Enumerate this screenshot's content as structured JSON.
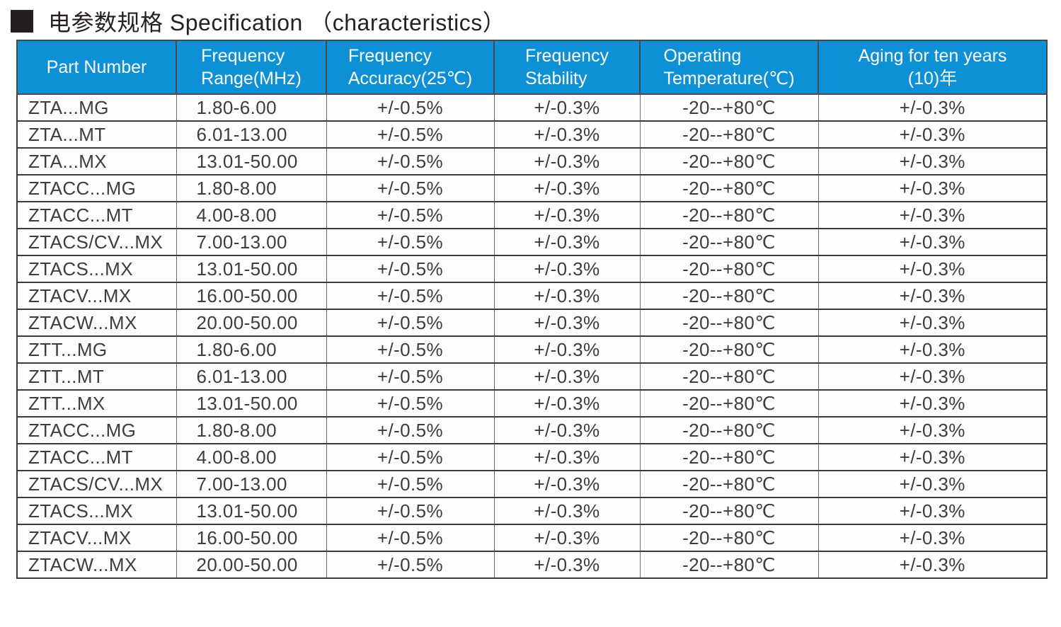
{
  "page": {
    "title": {
      "bullet_icon": "black-square",
      "text": "电参数规格 Specification （characteristics）"
    }
  },
  "colors": {
    "header_bg": "#0e90d6",
    "header_text": "#ffffff",
    "body_text": "#3d3d3d",
    "grid_line_dark": "#3a3a3a",
    "grid_line_light": "#6f6f6f",
    "title_text": "#272221"
  },
  "table": {
    "columns": [
      {
        "id": "part-number",
        "line1": "Part Number",
        "line2": ""
      },
      {
        "id": "frequency-range",
        "line1": "Frequency",
        "line2": "Range(MHz)"
      },
      {
        "id": "frequency-accuracy",
        "line1": "Frequency",
        "line2": "Accuracy(25℃)"
      },
      {
        "id": "frequency-stability",
        "line1": "Frequency",
        "line2": "Stability"
      },
      {
        "id": "operating-temperature",
        "line1": "Operating",
        "line2": "Temperature(℃)"
      },
      {
        "id": "aging-ten-years",
        "line1": "Aging for ten years",
        "line2": "(10)年"
      }
    ],
    "rows": [
      [
        "ZTA...MG",
        "1.80-6.00",
        "+/-0.5%",
        "+/-0.3%",
        "-20--+80℃",
        "+/-0.3%"
      ],
      [
        "ZTA...MT",
        "6.01-13.00",
        "+/-0.5%",
        "+/-0.3%",
        "-20--+80℃",
        "+/-0.3%"
      ],
      [
        "ZTA...MX",
        "13.01-50.00",
        "+/-0.5%",
        "+/-0.3%",
        "-20--+80℃",
        "+/-0.3%"
      ],
      [
        "ZTACC...MG",
        "1.80-8.00",
        "+/-0.5%",
        "+/-0.3%",
        "-20--+80℃",
        "+/-0.3%"
      ],
      [
        "ZTACC...MT",
        "4.00-8.00",
        "+/-0.5%",
        "+/-0.3%",
        "-20--+80℃",
        "+/-0.3%"
      ],
      [
        "ZTACS/CV...MX",
        "7.00-13.00",
        "+/-0.5%",
        "+/-0.3%",
        "-20--+80℃",
        "+/-0.3%"
      ],
      [
        "ZTACS...MX",
        "13.01-50.00",
        "+/-0.5%",
        "+/-0.3%",
        "-20--+80℃",
        "+/-0.3%"
      ],
      [
        "ZTACV...MX",
        "16.00-50.00",
        "+/-0.5%",
        "+/-0.3%",
        "-20--+80℃",
        "+/-0.3%"
      ],
      [
        "ZTACW...MX",
        "20.00-50.00",
        "+/-0.5%",
        "+/-0.3%",
        "-20--+80℃",
        "+/-0.3%"
      ],
      [
        "ZTT...MG",
        "1.80-6.00",
        "+/-0.5%",
        "+/-0.3%",
        "-20--+80℃",
        "+/-0.3%"
      ],
      [
        "ZTT...MT",
        "6.01-13.00",
        "+/-0.5%",
        "+/-0.3%",
        "-20--+80℃",
        "+/-0.3%"
      ],
      [
        "ZTT...MX",
        "13.01-50.00",
        "+/-0.5%",
        "+/-0.3%",
        "-20--+80℃",
        "+/-0.3%"
      ],
      [
        "ZTACC...MG",
        "1.80-8.00",
        "+/-0.5%",
        "+/-0.3%",
        "-20--+80℃",
        "+/-0.3%"
      ],
      [
        "ZTACC...MT",
        "4.00-8.00",
        "+/-0.5%",
        "+/-0.3%",
        "-20--+80℃",
        "+/-0.3%"
      ],
      [
        "ZTACS/CV...MX",
        "7.00-13.00",
        "+/-0.5%",
        "+/-0.3%",
        "-20--+80℃",
        "+/-0.3%"
      ],
      [
        "ZTACS...MX",
        "13.01-50.00",
        "+/-0.5%",
        "+/-0.3%",
        "-20--+80℃",
        "+/-0.3%"
      ],
      [
        "ZTACV...MX",
        "16.00-50.00",
        "+/-0.5%",
        "+/-0.3%",
        "-20--+80℃",
        "+/-0.3%"
      ],
      [
        "ZTACW...MX",
        "20.00-50.00",
        "+/-0.5%",
        "+/-0.3%",
        "-20--+80℃",
        "+/-0.3%"
      ]
    ]
  }
}
